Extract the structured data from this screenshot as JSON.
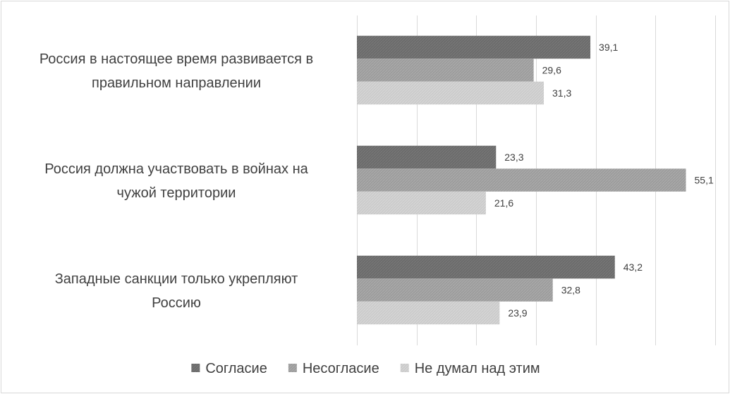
{
  "chart_data": {
    "type": "bar",
    "orientation": "horizontal",
    "title": "",
    "xlabel": "",
    "ylabel": "",
    "xlim": [
      0,
      60
    ],
    "grid": true,
    "legend_position": "bottom",
    "categories": [
      "Россия в настоящее время развивается в правильном направлении",
      "Россия должна участвовать в войнах на чужой территории",
      "Западные санкции только укрепляют Россию"
    ],
    "category_lines": [
      [
        "Россия в настоящее время развивается в",
        "правильном направлении"
      ],
      [
        "Россия должна участвовать в войнах на",
        "чужой территории"
      ],
      [
        "Западные санкции только укрепляют",
        "Россию"
      ]
    ],
    "series": [
      {
        "name": "Согласие",
        "values": [
          39.1,
          23.3,
          43.2
        ],
        "labels": [
          "39,1",
          "23,3",
          "43,2"
        ],
        "color": "#6e6e6e"
      },
      {
        "name": "Несогласие",
        "values": [
          29.6,
          55.1,
          32.8
        ],
        "labels": [
          "29,6",
          "55,1",
          "32,8"
        ],
        "color": "#a0a0a0"
      },
      {
        "name": "Не думал над этим",
        "values": [
          31.3,
          21.6,
          23.9
        ],
        "labels": [
          "31,3",
          "21,6",
          "23,9"
        ],
        "color": "#cfcfcf"
      }
    ]
  }
}
